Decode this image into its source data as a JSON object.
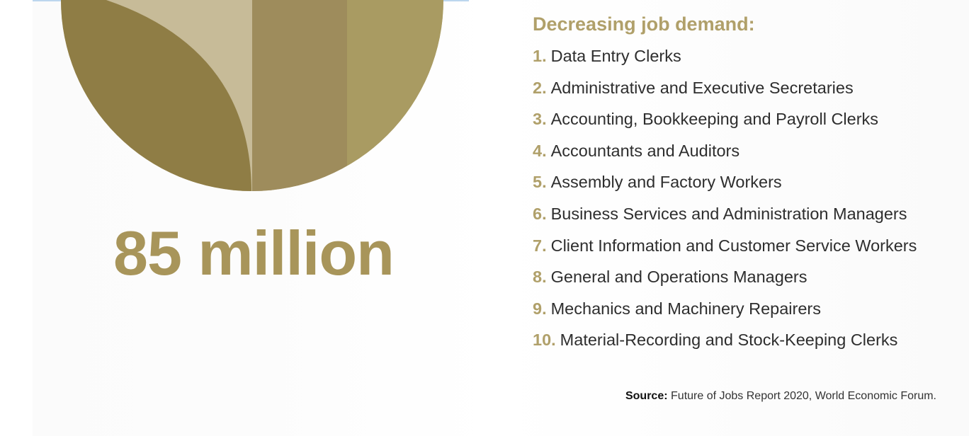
{
  "colors": {
    "accent_gold": "#b0a06a",
    "number_gold": "#a8955a",
    "emblem_dark": "#8f7d45",
    "emblem_light": "#c7bb98",
    "emblem_mid": "#9e8c5c",
    "emblem_right": "#a99b62",
    "text": "#2e2e2e"
  },
  "emblem": {
    "icon": "gold-circle-emblem-icon"
  },
  "headline": {
    "number": "85 million"
  },
  "list": {
    "title": "Decreasing job demand:",
    "items": [
      {
        "num": "1.",
        "label": "Data Entry Clerks"
      },
      {
        "num": "2.",
        "label": "Administrative and Executive Secretaries"
      },
      {
        "num": "3.",
        "label": "Accounting, Bookkeeping and Payroll Clerks"
      },
      {
        "num": "4.",
        "label": "Accountants and Auditors"
      },
      {
        "num": "5.",
        "label": "Assembly and Factory Workers"
      },
      {
        "num": "6.",
        "label": "Business Services and Administration Managers"
      },
      {
        "num": "7.",
        "label": "Client Information and Customer Service Workers"
      },
      {
        "num": "8.",
        "label": "General and Operations Managers"
      },
      {
        "num": "9.",
        "label": "Mechanics and Machinery Repairers"
      },
      {
        "num": "10.",
        "label": "Material-Recording and Stock-Keeping Clerks"
      }
    ]
  },
  "source": {
    "label": "Source:",
    "text": "Future of Jobs Report 2020, World Economic Forum."
  }
}
